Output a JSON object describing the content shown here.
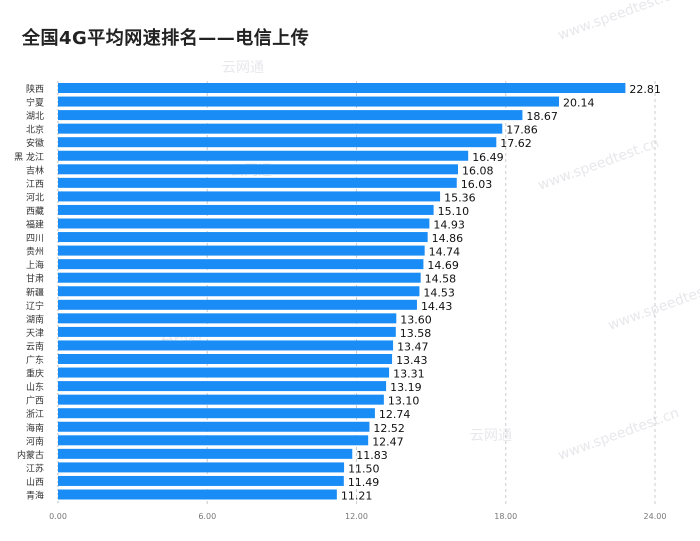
{
  "chart_data": {
    "type": "bar",
    "orientation": "horizontal",
    "title": "全国4G平均网速排名——电信上传",
    "categories": [
      "陕西",
      "宁夏",
      "湖北",
      "北京",
      "安徽",
      "黑 龙江",
      "吉林",
      "江西",
      "河北",
      "西藏",
      "福建",
      "四川",
      "贵州",
      "上海",
      "甘肃",
      "新疆",
      "辽宁",
      "湖南",
      "天津",
      "云南",
      "广东",
      "重庆",
      "山东",
      "广西",
      "浙江",
      "海南",
      "河南",
      "内蒙古",
      "江苏",
      "山西",
      "青海"
    ],
    "values": [
      22.81,
      20.14,
      18.67,
      17.86,
      17.62,
      16.49,
      16.08,
      16.03,
      15.36,
      15.1,
      14.93,
      14.86,
      14.74,
      14.69,
      14.58,
      14.53,
      14.43,
      13.6,
      13.58,
      13.47,
      13.43,
      13.31,
      13.19,
      13.1,
      12.74,
      12.52,
      12.47,
      11.83,
      11.5,
      11.49,
      11.21
    ],
    "value_labels": [
      "22.81",
      "20.14",
      "18.67",
      "17.86",
      "17.62",
      "16.49",
      "16.08",
      "16.03",
      "15.36",
      "15.10",
      "14.93",
      "14.86",
      "14.74",
      "14.69",
      "14.58",
      "14.53",
      "14.43",
      "13.60",
      "13.58",
      "13.47",
      "13.43",
      "13.31",
      "13.19",
      "13.10",
      "12.74",
      "12.52",
      "12.47",
      "11.83",
      "11.50",
      "11.49",
      "11.21"
    ],
    "xticks": [
      "0.00",
      "6.00",
      "12.00",
      "18.00",
      "24.00"
    ],
    "xlim": [
      0,
      24
    ],
    "grid": "vertical dashed",
    "bar_color": "#1a8cf5",
    "watermarks": [
      "www.speedtest.cn",
      "云网通"
    ]
  }
}
